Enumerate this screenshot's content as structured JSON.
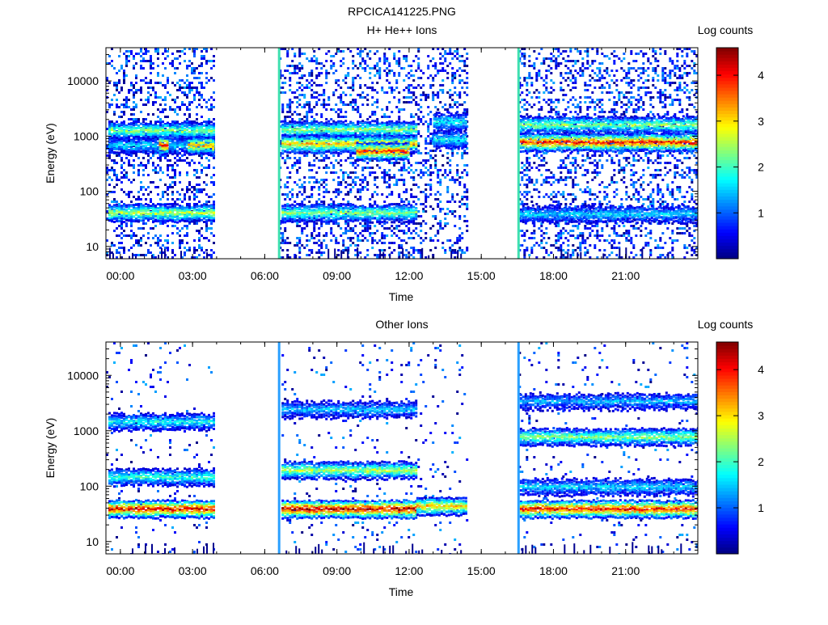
{
  "title": "RPCICA141225.PNG",
  "chart_data": [
    {
      "type": "heatmap",
      "title": "H+ He++ Ions",
      "xlabel": "Time",
      "ylabel": "Energy (eV)",
      "x_unit": "hours (UT)",
      "xlim": [
        -0.6,
        24.0
      ],
      "ylim": [
        6,
        40000
      ],
      "y_scale": "log",
      "x_ticks": [
        {
          "value": 0,
          "label": "00:00"
        },
        {
          "value": 3,
          "label": "03:00"
        },
        {
          "value": 6,
          "label": "06:00"
        },
        {
          "value": 9,
          "label": "09:00"
        },
        {
          "value": 12,
          "label": "12:00"
        },
        {
          "value": 15,
          "label": "15:00"
        },
        {
          "value": 18,
          "label": "18:00"
        },
        {
          "value": 21,
          "label": "21:00"
        }
      ],
      "y_ticks": [
        {
          "value": 10,
          "label": "10"
        },
        {
          "value": 100,
          "label": "100"
        },
        {
          "value": 1000,
          "label": "1000"
        },
        {
          "value": 10000,
          "label": "10000"
        }
      ],
      "colorbar": {
        "label": "Log counts",
        "range": [
          0,
          4.6
        ],
        "ticks": [
          1,
          2,
          3,
          4
        ],
        "colormap": "jet"
      },
      "data_intervals": [
        [
          -0.6,
          3.85
        ],
        [
          6.6,
          14.4
        ],
        [
          16.55,
          24.0
        ]
      ],
      "marker_lines": [
        6.6,
        16.55
      ],
      "bands": [
        {
          "t": [
            -0.5,
            3.85
          ],
          "energy": 42,
          "level": 2.6
        },
        {
          "t": [
            -0.5,
            3.85
          ],
          "energy": 1300,
          "level": 2.4
        },
        {
          "t": [
            -0.5,
            3.85
          ],
          "energy": 700,
          "level": 1.6
        },
        {
          "t": [
            1.6,
            2.0
          ],
          "energy": 700,
          "level": 4.0
        },
        {
          "t": [
            2.8,
            3.85
          ],
          "energy": 700,
          "level": 3.4
        },
        {
          "t": [
            6.7,
            12.3
          ],
          "energy": 42,
          "level": 2.4
        },
        {
          "t": [
            6.7,
            12.3
          ],
          "energy": 1350,
          "level": 2.4
        },
        {
          "t": [
            6.7,
            12.3
          ],
          "energy": 750,
          "level": 3.2
        },
        {
          "t": [
            9.8,
            12.0
          ],
          "energy": 550,
          "level": 3.9
        },
        {
          "t": [
            13.0,
            14.4
          ],
          "energy": 900,
          "level": 1.8
        },
        {
          "t": [
            13.0,
            14.4
          ],
          "energy": 1900,
          "level": 1.8
        },
        {
          "t": [
            16.6,
            24.0
          ],
          "energy": 1650,
          "level": 2.4
        },
        {
          "t": [
            16.6,
            24.0
          ],
          "energy": 800,
          "level": 4.0
        },
        {
          "t": [
            16.6,
            24.0
          ],
          "energy": 40,
          "level": 1.6
        }
      ]
    },
    {
      "type": "heatmap",
      "title": "Other Ions",
      "xlabel": "Time",
      "ylabel": "Energy (eV)",
      "x_unit": "hours (UT)",
      "xlim": [
        -0.6,
        24.0
      ],
      "ylim": [
        6,
        40000
      ],
      "y_scale": "log",
      "x_ticks": [
        {
          "value": 0,
          "label": "00:00"
        },
        {
          "value": 3,
          "label": "03:00"
        },
        {
          "value": 6,
          "label": "06:00"
        },
        {
          "value": 9,
          "label": "09:00"
        },
        {
          "value": 12,
          "label": "12:00"
        },
        {
          "value": 15,
          "label": "15:00"
        },
        {
          "value": 18,
          "label": "18:00"
        },
        {
          "value": 21,
          "label": "21:00"
        }
      ],
      "y_ticks": [
        {
          "value": 10,
          "label": "10"
        },
        {
          "value": 100,
          "label": "100"
        },
        {
          "value": 1000,
          "label": "1000"
        },
        {
          "value": 10000,
          "label": "10000"
        }
      ],
      "colorbar": {
        "label": "Log counts",
        "range": [
          0,
          4.6
        ],
        "ticks": [
          1,
          2,
          3,
          4
        ],
        "colormap": "jet"
      },
      "data_intervals": [
        [
          -0.6,
          3.85
        ],
        [
          6.6,
          14.4
        ],
        [
          16.55,
          24.0
        ]
      ],
      "marker_lines": [
        6.6,
        16.55
      ],
      "bands": [
        {
          "t": [
            -0.5,
            3.85
          ],
          "energy": 40,
          "level": 4.2
        },
        {
          "t": [
            -0.5,
            3.85
          ],
          "energy": 150,
          "level": 2.0
        },
        {
          "t": [
            -0.5,
            3.85
          ],
          "energy": 1500,
          "level": 1.8
        },
        {
          "t": [
            6.7,
            12.3
          ],
          "energy": 40,
          "level": 4.4
        },
        {
          "t": [
            6.7,
            12.3
          ],
          "energy": 200,
          "level": 2.6
        },
        {
          "t": [
            6.7,
            12.3
          ],
          "energy": 2500,
          "level": 1.5
        },
        {
          "t": [
            12.3,
            14.4
          ],
          "energy": 45,
          "level": 3.2
        },
        {
          "t": [
            16.6,
            24.0
          ],
          "energy": 40,
          "level": 4.1
        },
        {
          "t": [
            16.6,
            24.0
          ],
          "energy": 100,
          "level": 1.6
        },
        {
          "t": [
            16.6,
            24.0
          ],
          "energy": 800,
          "level": 2.4
        },
        {
          "t": [
            16.6,
            24.0
          ],
          "energy": 3500,
          "level": 1.4
        }
      ]
    }
  ]
}
